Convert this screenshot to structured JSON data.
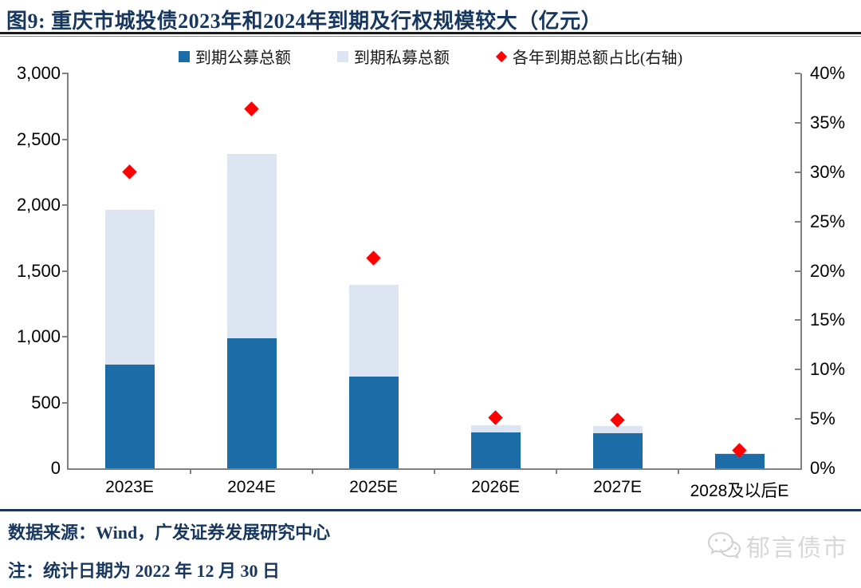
{
  "title": "图9:  重庆市城投债2023年和2024年到期及行权规模较大（亿元）",
  "legend": {
    "items": [
      {
        "label": "到期公募总额",
        "marker": "square",
        "color": "#1C6CA8"
      },
      {
        "label": "到期私募总额",
        "marker": "square",
        "color": "#DCE5F1"
      },
      {
        "label": "各年到期总额占比(右轴)",
        "marker": "diamond",
        "color": "#FE0000"
      }
    ]
  },
  "chart_data": {
    "type": "bar",
    "stacked": true,
    "title": "重庆市城投债2023年和2024年到期及行权规模较大（亿元）",
    "xlabel": "",
    "ylabel": "",
    "legend_position": "top",
    "grid": false,
    "categories": [
      "2023E",
      "2024E",
      "2025E",
      "2026E",
      "2027E",
      "2028及以后E"
    ],
    "series": [
      {
        "name": "到期公募总额",
        "type": "bar",
        "axis": "left",
        "color": "#1C6CA8",
        "values": [
          790,
          985,
          700,
          273,
          268,
          110
        ]
      },
      {
        "name": "到期私募总额",
        "type": "bar",
        "axis": "left",
        "color": "#DCE5F1",
        "values": [
          1175,
          1405,
          695,
          57,
          54,
          5
        ]
      },
      {
        "name": "各年到期总额占比(右轴)",
        "type": "scatter",
        "axis": "right",
        "color": "#FE0000",
        "values": [
          30.0,
          36.4,
          21.3,
          5.1,
          4.9,
          1.8
        ]
      }
    ],
    "left_axis": {
      "min": 0,
      "max": 3000,
      "step": 500,
      "tick_labels": [
        "0",
        "500",
        "1,000",
        "1,500",
        "2,000",
        "2,500",
        "3,000"
      ]
    },
    "right_axis": {
      "min": 0,
      "max": 40,
      "step": 5,
      "tick_labels": [
        "0%",
        "5%",
        "10%",
        "15%",
        "20%",
        "25%",
        "30%",
        "35%",
        "40%"
      ]
    }
  },
  "footer": {
    "source": "数据来源：Wind，广发证券发展研究中心",
    "note": "注：统计日期为 2022 年 12 月 30 日"
  },
  "watermark": {
    "icon": "wechat-icon",
    "text": "郁言债市"
  },
  "colors": {
    "accent_navy": "#17375E",
    "bar_public": "#1C6CA8",
    "bar_private": "#DCE5F1",
    "scatter_red": "#FE0000",
    "axis_gray": "#808080",
    "watermark_gray": "#D7D7D7"
  }
}
